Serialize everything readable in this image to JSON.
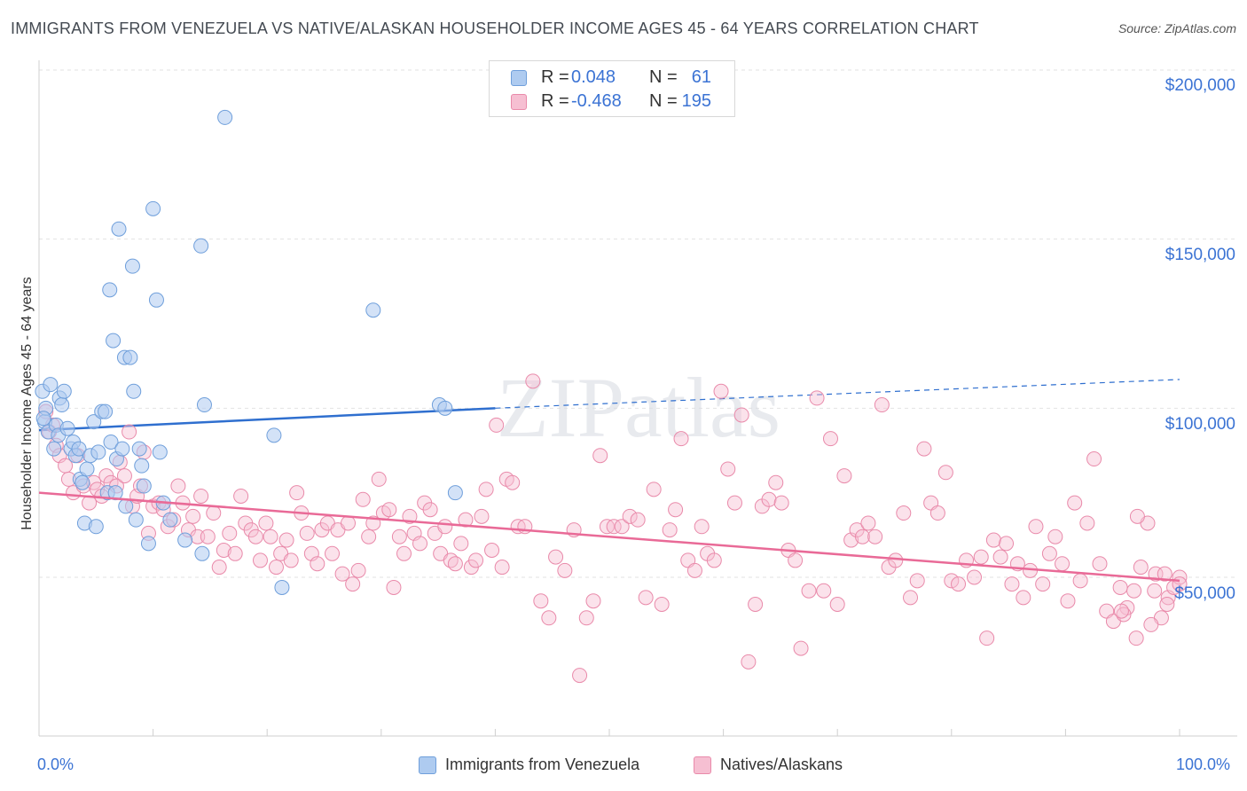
{
  "title": "IMMIGRANTS FROM VENEZUELA VS NATIVE/ALASKAN HOUSEHOLDER INCOME AGES 45 - 64 YEARS CORRELATION CHART",
  "source": "Source: ZipAtlas.com",
  "watermark": "ZIPatlas",
  "legend": {
    "rows": [
      {
        "r_label": "R =",
        "r_value": "0.048",
        "n_label": "N =",
        "n_value": "61"
      },
      {
        "r_label": "R =",
        "r_value": "-0.468",
        "n_label": "N =",
        "n_value": "195"
      }
    ]
  },
  "colors": {
    "blue_fill": "#aecbf0",
    "blue_stroke": "#6f9fdb",
    "blue_line": "#2f6fcf",
    "pink_fill": "#f6bfd2",
    "pink_stroke": "#e98aaa",
    "pink_line": "#e96a97",
    "grid": "#e2e2e2",
    "axis_text": "#3b73d4"
  },
  "chart_data": {
    "type": "scatter",
    "title": "IMMIGRANTS FROM VENEZUELA VS NATIVE/ALASKAN HOUSEHOLDER INCOME AGES 45 - 64 YEARS CORRELATION CHART",
    "xlabel": "",
    "ylabel": "Householder Income Ages 45 - 64 years",
    "xlim": [
      0,
      100
    ],
    "ylim": [
      0,
      210000
    ],
    "x_tick_labels": [
      "0.0%",
      "100.0%"
    ],
    "y_ticks": [
      50000,
      100000,
      150000,
      200000
    ],
    "y_tick_labels": [
      "$50,000",
      "$100,000",
      "$150,000",
      "$200,000"
    ],
    "series": [
      {
        "name": "Immigrants from Venezuela",
        "color": "#aecbf0",
        "trend": {
          "x": [
            0,
            40
          ],
          "y": [
            93500,
            100000
          ],
          "dashed_to": [
            100,
            108500
          ]
        },
        "points": [
          [
            0.3,
            105000
          ],
          [
            0.5,
            96000
          ],
          [
            0.6,
            100000
          ],
          [
            0.8,
            93000
          ],
          [
            1.0,
            107000
          ],
          [
            1.3,
            88000
          ],
          [
            1.5,
            95000
          ],
          [
            1.7,
            92000
          ],
          [
            1.8,
            103000
          ],
          [
            2.0,
            101000
          ],
          [
            2.2,
            105000
          ],
          [
            2.5,
            94000
          ],
          [
            2.8,
            88000
          ],
          [
            3.0,
            90000
          ],
          [
            3.2,
            86000
          ],
          [
            3.5,
            88000
          ],
          [
            3.6,
            79000
          ],
          [
            3.8,
            78000
          ],
          [
            4.0,
            66000
          ],
          [
            4.2,
            82000
          ],
          [
            4.5,
            86000
          ],
          [
            4.8,
            96000
          ],
          [
            5.0,
            65000
          ],
          [
            5.2,
            87000
          ],
          [
            5.5,
            99000
          ],
          [
            5.8,
            99000
          ],
          [
            6.0,
            75000
          ],
          [
            6.3,
            90000
          ],
          [
            6.5,
            120000
          ],
          [
            6.2,
            135000
          ],
          [
            6.7,
            75000
          ],
          [
            6.8,
            85000
          ],
          [
            7.0,
            153000
          ],
          [
            7.3,
            88000
          ],
          [
            7.5,
            115000
          ],
          [
            7.6,
            71000
          ],
          [
            8.0,
            115000
          ],
          [
            8.2,
            142000
          ],
          [
            8.3,
            105000
          ],
          [
            8.5,
            67000
          ],
          [
            8.8,
            88000
          ],
          [
            9.0,
            83000
          ],
          [
            9.2,
            77000
          ],
          [
            9.6,
            60000
          ],
          [
            10.0,
            159000
          ],
          [
            10.3,
            132000
          ],
          [
            10.6,
            87000
          ],
          [
            10.9,
            72000
          ],
          [
            11.5,
            67000
          ],
          [
            12.8,
            61000
          ],
          [
            14.3,
            57000
          ],
          [
            14.5,
            101000
          ],
          [
            14.2,
            148000
          ],
          [
            16.3,
            186000
          ],
          [
            20.6,
            92000
          ],
          [
            21.3,
            47000
          ],
          [
            29.3,
            129000
          ],
          [
            35.1,
            101000
          ],
          [
            35.6,
            100000
          ],
          [
            36.5,
            75000
          ],
          [
            0.4,
            97000
          ]
        ]
      },
      {
        "name": "Natives/Alaskans",
        "color": "#f6bfd2",
        "trend": {
          "x": [
            0,
            100
          ],
          "y": [
            75000,
            49000
          ]
        },
        "points": [
          [
            0.6,
            99000
          ],
          [
            0.9,
            93000
          ],
          [
            1.2,
            95000
          ],
          [
            1.5,
            89000
          ],
          [
            1.8,
            86000
          ],
          [
            2.3,
            83000
          ],
          [
            2.6,
            79000
          ],
          [
            3.0,
            75000
          ],
          [
            3.4,
            86000
          ],
          [
            3.9,
            77000
          ],
          [
            4.4,
            72000
          ],
          [
            4.8,
            78000
          ],
          [
            5.1,
            76000
          ],
          [
            5.5,
            74000
          ],
          [
            5.9,
            80000
          ],
          [
            6.3,
            78000
          ],
          [
            6.8,
            77000
          ],
          [
            7.1,
            84000
          ],
          [
            7.5,
            80000
          ],
          [
            7.9,
            93000
          ],
          [
            8.2,
            71000
          ],
          [
            8.6,
            74000
          ],
          [
            8.9,
            77000
          ],
          [
            9.2,
            87000
          ],
          [
            9.6,
            63000
          ],
          [
            10.0,
            71000
          ],
          [
            10.5,
            72000
          ],
          [
            10.9,
            70000
          ],
          [
            11.3,
            65000
          ],
          [
            11.8,
            67000
          ],
          [
            12.2,
            77000
          ],
          [
            12.6,
            72000
          ],
          [
            13.1,
            64000
          ],
          [
            13.5,
            68000
          ],
          [
            13.9,
            62000
          ],
          [
            14.2,
            74000
          ],
          [
            14.8,
            62000
          ],
          [
            15.3,
            69000
          ],
          [
            15.8,
            53000
          ],
          [
            16.2,
            58000
          ],
          [
            16.7,
            63000
          ],
          [
            17.2,
            57000
          ],
          [
            17.7,
            74000
          ],
          [
            18.1,
            66000
          ],
          [
            18.6,
            64000
          ],
          [
            19.0,
            62000
          ],
          [
            19.4,
            55000
          ],
          [
            19.9,
            66000
          ],
          [
            20.3,
            62000
          ],
          [
            20.8,
            53000
          ],
          [
            21.2,
            57000
          ],
          [
            21.7,
            61000
          ],
          [
            22.1,
            55000
          ],
          [
            22.6,
            75000
          ],
          [
            23.0,
            69000
          ],
          [
            23.5,
            63000
          ],
          [
            23.9,
            57000
          ],
          [
            24.4,
            54000
          ],
          [
            24.8,
            64000
          ],
          [
            25.3,
            66000
          ],
          [
            25.7,
            57000
          ],
          [
            26.2,
            64000
          ],
          [
            26.6,
            51000
          ],
          [
            27.1,
            66000
          ],
          [
            27.5,
            48000
          ],
          [
            28.0,
            52000
          ],
          [
            28.4,
            73000
          ],
          [
            28.9,
            62000
          ],
          [
            29.3,
            66000
          ],
          [
            29.8,
            79000
          ],
          [
            30.2,
            69000
          ],
          [
            30.7,
            70000
          ],
          [
            31.1,
            47000
          ],
          [
            31.6,
            62000
          ],
          [
            32.0,
            57000
          ],
          [
            32.5,
            68000
          ],
          [
            32.9,
            63000
          ],
          [
            33.4,
            60000
          ],
          [
            33.8,
            72000
          ],
          [
            34.3,
            70000
          ],
          [
            34.7,
            63000
          ],
          [
            35.2,
            57000
          ],
          [
            35.6,
            65000
          ],
          [
            36.1,
            55000
          ],
          [
            36.5,
            54000
          ],
          [
            37.0,
            60000
          ],
          [
            37.4,
            67000
          ],
          [
            37.9,
            53000
          ],
          [
            38.3,
            55000
          ],
          [
            38.8,
            68000
          ],
          [
            39.2,
            76000
          ],
          [
            39.7,
            58000
          ],
          [
            40.1,
            95000
          ],
          [
            40.6,
            53000
          ],
          [
            41.0,
            79000
          ],
          [
            41.5,
            78000
          ],
          [
            42.0,
            65000
          ],
          [
            42.6,
            65000
          ],
          [
            43.3,
            108000
          ],
          [
            44.0,
            43000
          ],
          [
            44.7,
            38000
          ],
          [
            45.3,
            56000
          ],
          [
            46.1,
            52000
          ],
          [
            46.9,
            64000
          ],
          [
            47.4,
            21000
          ],
          [
            48.0,
            38000
          ],
          [
            48.6,
            43000
          ],
          [
            49.2,
            86000
          ],
          [
            49.8,
            65000
          ],
          [
            50.4,
            65000
          ],
          [
            51.1,
            65000
          ],
          [
            51.8,
            68000
          ],
          [
            52.5,
            67000
          ],
          [
            53.2,
            44000
          ],
          [
            53.9,
            76000
          ],
          [
            54.6,
            42000
          ],
          [
            55.3,
            64000
          ],
          [
            55.8,
            70000
          ],
          [
            56.3,
            91000
          ],
          [
            56.9,
            55000
          ],
          [
            57.5,
            52000
          ],
          [
            58.1,
            65000
          ],
          [
            58.6,
            57000
          ],
          [
            59.2,
            55000
          ],
          [
            59.8,
            105000
          ],
          [
            60.4,
            82000
          ],
          [
            61.0,
            72000
          ],
          [
            61.6,
            98000
          ],
          [
            62.2,
            25000
          ],
          [
            62.8,
            42000
          ],
          [
            63.4,
            71000
          ],
          [
            64.0,
            73000
          ],
          [
            64.6,
            78000
          ],
          [
            65.1,
            72000
          ],
          [
            65.7,
            58000
          ],
          [
            66.3,
            55000
          ],
          [
            66.8,
            29000
          ],
          [
            67.5,
            46000
          ],
          [
            68.2,
            103000
          ],
          [
            68.8,
            46000
          ],
          [
            69.4,
            91000
          ],
          [
            70.0,
            42000
          ],
          [
            70.6,
            80000
          ],
          [
            71.2,
            61000
          ],
          [
            71.7,
            64000
          ],
          [
            72.2,
            62000
          ],
          [
            72.7,
            66000
          ],
          [
            73.3,
            62000
          ],
          [
            73.9,
            101000
          ],
          [
            74.5,
            53000
          ],
          [
            75.1,
            55000
          ],
          [
            75.8,
            69000
          ],
          [
            76.4,
            44000
          ],
          [
            77.0,
            49000
          ],
          [
            77.6,
            88000
          ],
          [
            78.2,
            72000
          ],
          [
            78.8,
            69000
          ],
          [
            79.5,
            81000
          ],
          [
            80.0,
            49000
          ],
          [
            80.6,
            48000
          ],
          [
            81.3,
            55000
          ],
          [
            82.0,
            50000
          ],
          [
            82.6,
            56000
          ],
          [
            83.1,
            32000
          ],
          [
            83.7,
            61000
          ],
          [
            84.3,
            56000
          ],
          [
            84.8,
            60000
          ],
          [
            85.3,
            48000
          ],
          [
            85.8,
            54000
          ],
          [
            86.3,
            44000
          ],
          [
            86.9,
            52000
          ],
          [
            87.4,
            65000
          ],
          [
            88.0,
            48000
          ],
          [
            88.6,
            57000
          ],
          [
            89.1,
            62000
          ],
          [
            89.7,
            54000
          ],
          [
            90.2,
            43000
          ],
          [
            90.8,
            72000
          ],
          [
            91.3,
            49000
          ],
          [
            91.9,
            66000
          ],
          [
            92.5,
            85000
          ],
          [
            93.0,
            54000
          ],
          [
            93.6,
            40000
          ],
          [
            94.2,
            37000
          ],
          [
            94.8,
            47000
          ],
          [
            95.4,
            41000
          ],
          [
            96.0,
            46000
          ],
          [
            96.6,
            53000
          ],
          [
            97.2,
            66000
          ],
          [
            97.8,
            46000
          ],
          [
            98.4,
            38000
          ],
          [
            99.0,
            44000
          ],
          [
            99.5,
            47000
          ],
          [
            100.0,
            50000
          ],
          [
            100.0,
            48000
          ],
          [
            98.9,
            42000
          ],
          [
            97.5,
            36000
          ],
          [
            96.2,
            32000
          ],
          [
            95.1,
            39000
          ],
          [
            97.9,
            51000
          ],
          [
            98.7,
            51000
          ],
          [
            96.3,
            68000
          ],
          [
            94.9,
            40000
          ]
        ]
      }
    ]
  },
  "bottom_legend": [
    {
      "label": "Immigrants from Venezuela"
    },
    {
      "label": "Natives/Alaskans"
    }
  ]
}
